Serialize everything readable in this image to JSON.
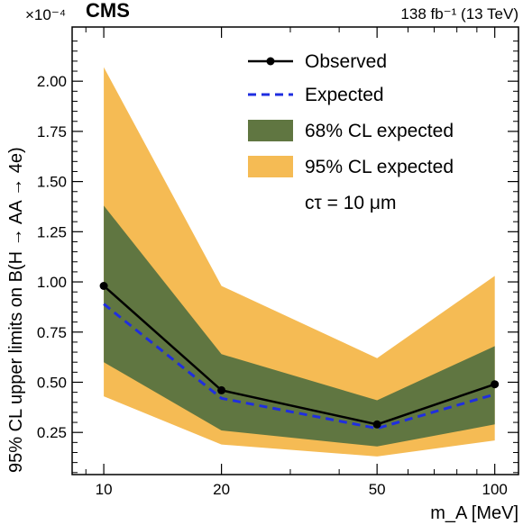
{
  "chart_data": {
    "type": "line",
    "experiment": "CMS",
    "lumi": "138 fb⁻¹ (13 TeV)",
    "exponent": "×10⁻⁴",
    "xlabel": "m_A [MeV]",
    "ylabel": "95% CL upper limits on B(H → AA → 4e)",
    "annotation": "cτ = 10 μm",
    "xscale": "log",
    "xlim": [
      8.3,
      115
    ],
    "ylim": [
      0.04,
      2.27
    ],
    "x_ticks": [
      10,
      20,
      50,
      100
    ],
    "x_tick_labels": [
      "10",
      "20",
      "50",
      "100"
    ],
    "y_ticks": [
      0.25,
      0.5,
      0.75,
      1.0,
      1.25,
      1.5,
      1.75,
      2.0
    ],
    "y_tick_labels": [
      "0.25",
      "0.50",
      "0.75",
      "1.00",
      "1.25",
      "1.50",
      "1.75",
      "2.00"
    ],
    "x": [
      10,
      20,
      50,
      100
    ],
    "series": [
      {
        "name": "Observed",
        "values": [
          0.98,
          0.46,
          0.29,
          0.49
        ],
        "color": "#000000",
        "style": "solid-with-markers"
      },
      {
        "name": "Expected",
        "values": [
          0.89,
          0.42,
          0.27,
          0.44
        ],
        "color": "#1f2ee0",
        "style": "dashed"
      },
      {
        "name": "68% CL expected",
        "lower": [
          0.6,
          0.26,
          0.18,
          0.29
        ],
        "upper": [
          1.38,
          0.64,
          0.41,
          0.68
        ],
        "color": "#607641",
        "style": "band"
      },
      {
        "name": "95% CL expected",
        "lower": [
          0.43,
          0.19,
          0.13,
          0.21
        ],
        "upper": [
          2.07,
          0.98,
          0.62,
          1.03
        ],
        "color": "#f5bb54",
        "style": "band"
      }
    ],
    "legend_position": "top-right"
  }
}
